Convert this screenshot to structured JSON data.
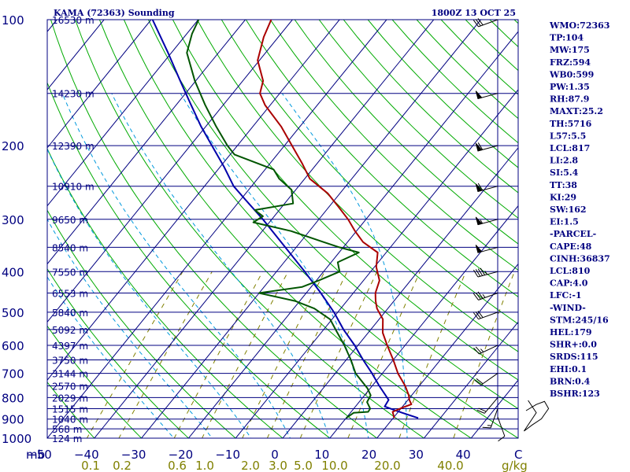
{
  "chart_data": {
    "type": "skew-t",
    "title": "KAMA (72363) Sounding",
    "datetime": "1800Z 13 OCT 25",
    "pressure_axis": {
      "label": "mb",
      "ticks": [
        100,
        200,
        300,
        400,
        500,
        600,
        700,
        800,
        900,
        1000
      ],
      "range": [
        100,
        1050
      ]
    },
    "temperature_axis": {
      "ticks": [
        -50,
        -40,
        -30,
        -20,
        -10,
        0,
        10,
        20,
        30,
        40
      ],
      "unit_label": "C",
      "range": [
        -50,
        50
      ]
    },
    "mixing_ratio_axis": {
      "ticks": [
        "0.1",
        "0.2",
        "0.6",
        "1.0",
        "2.0",
        "3.0",
        "5.0",
        "10.0",
        "20.0",
        "40.0"
      ],
      "unit": "g/kg"
    },
    "height_labels": [
      {
        "p": 100,
        "text": "16530 m"
      },
      {
        "p": 150,
        "text": "14230 m"
      },
      {
        "p": 200,
        "text": "12390 m"
      },
      {
        "p": 250,
        "text": "10910 m"
      },
      {
        "p": 300,
        "text": "9650 m"
      },
      {
        "p": 350,
        "text": "8540 m"
      },
      {
        "p": 400,
        "text": "7550 m"
      },
      {
        "p": 450,
        "text": "6553 m"
      },
      {
        "p": 500,
        "text": "5840 m"
      },
      {
        "p": 550,
        "text": "5092 m"
      },
      {
        "p": 600,
        "text": "4397 m"
      },
      {
        "p": 650,
        "text": "3750 m"
      },
      {
        "p": 700,
        "text": "3144 m"
      },
      {
        "p": 750,
        "text": "2570 m"
      },
      {
        "p": 800,
        "text": "2029 m"
      },
      {
        "p": 850,
        "text": "1515 m"
      },
      {
        "p": 900,
        "text": "1040 m"
      },
      {
        "p": 950,
        "text": "568 m"
      },
      {
        "p": 1000,
        "text": "124 m"
      }
    ],
    "temperature_profile": [
      {
        "p": 895,
        "t": 20.2
      },
      {
        "p": 865,
        "t": 18.8
      },
      {
        "p": 845,
        "t": 20.2
      },
      {
        "p": 830,
        "t": 21.5
      },
      {
        "p": 810,
        "t": 20.3
      },
      {
        "p": 790,
        "t": 19.4
      },
      {
        "p": 750,
        "t": 17.0
      },
      {
        "p": 700,
        "t": 13.3
      },
      {
        "p": 650,
        "t": 10.0
      },
      {
        "p": 600,
        "t": 6.2
      },
      {
        "p": 560,
        "t": 3.1
      },
      {
        "p": 520,
        "t": 0.8
      },
      {
        "p": 490,
        "t": -2.3
      },
      {
        "p": 470,
        "t": -3.9
      },
      {
        "p": 450,
        "t": -5.3
      },
      {
        "p": 420,
        "t": -6.6
      },
      {
        "p": 390,
        "t": -9.6
      },
      {
        "p": 360,
        "t": -11.8
      },
      {
        "p": 340,
        "t": -16.7
      },
      {
        "p": 320,
        "t": -20.3
      },
      {
        "p": 300,
        "t": -23.8
      },
      {
        "p": 280,
        "t": -28.0
      },
      {
        "p": 260,
        "t": -32.6
      },
      {
        "p": 240,
        "t": -38.9
      },
      {
        "p": 220,
        "t": -43.3
      },
      {
        "p": 200,
        "t": -48.4
      },
      {
        "p": 180,
        "t": -54.0
      },
      {
        "p": 160,
        "t": -61.1
      },
      {
        "p": 150,
        "t": -64.2
      },
      {
        "p": 140,
        "t": -65.7
      },
      {
        "p": 125,
        "t": -70.4
      },
      {
        "p": 110,
        "t": -73.1
      },
      {
        "p": 100,
        "t": -74.5
      }
    ],
    "dewpoint_profile": [
      {
        "p": 895,
        "t": 10.0
      },
      {
        "p": 870,
        "t": 10.7
      },
      {
        "p": 865,
        "t": 13.6
      },
      {
        "p": 850,
        "t": 13.5
      },
      {
        "p": 820,
        "t": 11.7
      },
      {
        "p": 790,
        "t": 11.3
      },
      {
        "p": 760,
        "t": 9.4
      },
      {
        "p": 700,
        "t": 4.3
      },
      {
        "p": 650,
        "t": 1.0
      },
      {
        "p": 600,
        "t": -2.9
      },
      {
        "p": 555,
        "t": -7.0
      },
      {
        "p": 520,
        "t": -10.4
      },
      {
        "p": 490,
        "t": -15.6
      },
      {
        "p": 470,
        "t": -21.0
      },
      {
        "p": 450,
        "t": -30.0
      },
      {
        "p": 435,
        "t": -21.9
      },
      {
        "p": 420,
        "t": -19.5
      },
      {
        "p": 400,
        "t": -16.6
      },
      {
        "p": 380,
        "t": -18.6
      },
      {
        "p": 360,
        "t": -15.8
      },
      {
        "p": 350,
        "t": -20.8
      },
      {
        "p": 340,
        "t": -25.1
      },
      {
        "p": 320,
        "t": -33.9
      },
      {
        "p": 305,
        "t": -43.4
      },
      {
        "p": 295,
        "t": -42.4
      },
      {
        "p": 285,
        "t": -45.2
      },
      {
        "p": 275,
        "t": -38.2
      },
      {
        "p": 255,
        "t": -40.9
      },
      {
        "p": 240,
        "t": -45.4
      },
      {
        "p": 228,
        "t": -48.2
      },
      {
        "p": 210,
        "t": -59.1
      },
      {
        "p": 200,
        "t": -62.1
      },
      {
        "p": 180,
        "t": -67.8
      },
      {
        "p": 160,
        "t": -73.8
      },
      {
        "p": 140,
        "t": -80.2
      },
      {
        "p": 120,
        "t": -86.7
      },
      {
        "p": 108,
        "t": -88.9
      },
      {
        "p": 100,
        "t": -89.9
      }
    ],
    "parcel_profile": [
      {
        "p": 895,
        "t": 25.3
      },
      {
        "p": 860,
        "t": 19.4
      },
      {
        "p": 840,
        "t": 16.2
      },
      {
        "p": 810,
        "t": 15.9
      },
      {
        "p": 750,
        "t": 11.5
      },
      {
        "p": 700,
        "t": 7.8
      },
      {
        "p": 650,
        "t": 3.6
      },
      {
        "p": 600,
        "t": -0.7
      },
      {
        "p": 550,
        "t": -5.8
      },
      {
        "p": 500,
        "t": -10.8
      },
      {
        "p": 450,
        "t": -16.9
      },
      {
        "p": 400,
        "t": -24.0
      },
      {
        "p": 350,
        "t": -32.3
      },
      {
        "p": 300,
        "t": -41.9
      },
      {
        "p": 270,
        "t": -48.8
      },
      {
        "p": 250,
        "t": -53.8
      },
      {
        "p": 225,
        "t": -59.1
      },
      {
        "p": 200,
        "t": -65.4
      },
      {
        "p": 180,
        "t": -71.0
      },
      {
        "p": 160,
        "t": -76.8
      },
      {
        "p": 140,
        "t": -83.3
      },
      {
        "p": 120,
        "t": -90.7
      },
      {
        "p": 100,
        "t": -99.7
      }
    ],
    "wind_barbs": [
      {
        "p": 890,
        "dir": 160,
        "spd": 10
      },
      {
        "p": 850,
        "dir": 200,
        "spd": 15
      },
      {
        "p": 800,
        "dir": 220,
        "spd": 20
      },
      {
        "p": 700,
        "dir": 235,
        "spd": 20
      },
      {
        "p": 600,
        "dir": 245,
        "spd": 25
      },
      {
        "p": 500,
        "dir": 250,
        "spd": 30
      },
      {
        "p": 450,
        "dir": 250,
        "spd": 35
      },
      {
        "p": 400,
        "dir": 255,
        "spd": 45
      },
      {
        "p": 350,
        "dir": 255,
        "spd": 50
      },
      {
        "p": 300,
        "dir": 255,
        "spd": 55
      },
      {
        "p": 250,
        "dir": 255,
        "spd": 60
      },
      {
        "p": 200,
        "dir": 255,
        "spd": 60
      },
      {
        "p": 150,
        "dir": 255,
        "spd": 50
      },
      {
        "p": 100,
        "dir": 250,
        "spd": 30
      }
    ],
    "hodograph": [
      {
        "u": 0,
        "v": 0
      },
      {
        "u": 10,
        "v": 6
      },
      {
        "u": 18,
        "v": 9
      },
      {
        "u": 22,
        "v": 2
      },
      {
        "u": 15,
        "v": -8
      },
      {
        "u": 6,
        "v": -14
      },
      {
        "u": -2,
        "v": -20
      },
      {
        "u": 10,
        "v": -2
      },
      {
        "u": 2,
        "v": 10
      }
    ],
    "indices": [
      "WMO:72363",
      "TP:104",
      "MW:175",
      "FRZ:594",
      "WB0:599",
      "PW:1.35",
      "RH:87.9",
      "MAXT:25.2",
      "TH:5716",
      "L57:5.5",
      "LCL:817",
      "LI:2.8",
      "SI:5.4",
      "TT:38",
      "KI:29",
      "SW:162",
      "EI:1.5",
      "-PARCEL-",
      "CAPE:48",
      "CINH:36837",
      "LCL:810",
      "CAP:4.0",
      "LFC:-1",
      "-WIND-",
      "STM:245/16",
      "HEL:179",
      "SHR+:0.0",
      "SRDS:115",
      "EHI:0.1",
      "BRN:0.4",
      "BSHR:123"
    ],
    "colors": {
      "isobar": "#000080",
      "isotherm": "#000080",
      "dry_adiabat": "#00aa00",
      "moist_adiabat": "#0099dd",
      "mixing_ratio": "#808000",
      "temperature": "#aa0000",
      "dewpoint": "#005500",
      "parcel": "#0000aa",
      "wind": "#000000",
      "text": "#000080",
      "mixing_label": "#808000"
    }
  }
}
